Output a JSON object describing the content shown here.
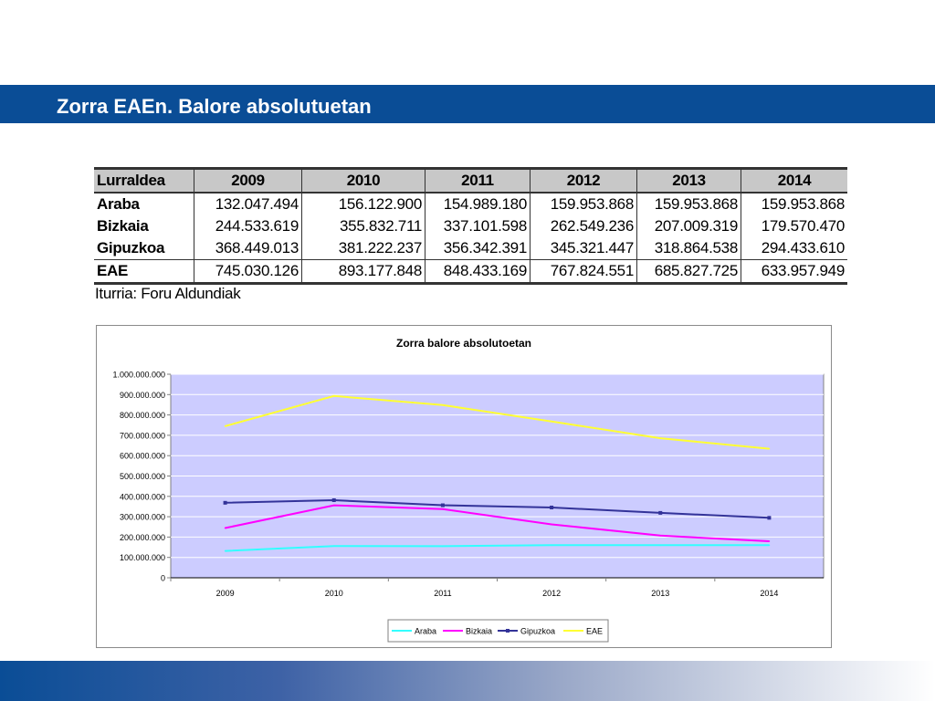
{
  "slide": {
    "title": "Zorra EAEn. Balore absolutuetan",
    "source": "Iturria: Foru Aldundiak"
  },
  "table": {
    "header": [
      "Lurraldea",
      "2009",
      "2010",
      "2011",
      "2012",
      "2013",
      "2014"
    ],
    "rows": [
      [
        "Araba",
        "132.047.494",
        "156.122.900",
        "154.989.180",
        "159.953.868",
        "159.953.868",
        "159.953.868"
      ],
      [
        "Bizkaia",
        "244.533.619",
        "355.832.711",
        "337.101.598",
        "262.549.236",
        "207.009.319",
        "179.570.470"
      ],
      [
        "Gipuzkoa",
        "368.449.013",
        "381.222.237",
        "356.342.391",
        "345.321.447",
        "318.864.538",
        "294.433.610"
      ],
      [
        "EAE",
        "745.030.126",
        "893.177.848",
        "848.433.169",
        "767.824.551",
        "685.827.725",
        "633.957.949"
      ]
    ]
  },
  "chart_data": {
    "type": "line",
    "title": "Zorra  balore absolutoetan",
    "categories": [
      "2009",
      "2010",
      "2011",
      "2012",
      "2013",
      "2014"
    ],
    "ylim": [
      0,
      1000000000
    ],
    "yticks": [
      "0",
      "100.000.000",
      "200.000.000",
      "300.000.000",
      "400.000.000",
      "500.000.000",
      "600.000.000",
      "700.000.000",
      "800.000.000",
      "900.000.000",
      "1.000.000.000"
    ],
    "grid": true,
    "legend_position": "bottom",
    "plot_background": "#ccccff",
    "series": [
      {
        "name": "Araba",
        "color": "#33ffff",
        "marker": false,
        "values": [
          132047494,
          156122900,
          154989180,
          159953868,
          159953868,
          159953868
        ]
      },
      {
        "name": "Bizkaia",
        "color": "#ff00ff",
        "marker": false,
        "values": [
          244533619,
          355832711,
          337101598,
          262549236,
          207009319,
          179570470
        ]
      },
      {
        "name": "Gipuzkoa",
        "color": "#333399",
        "marker": true,
        "values": [
          368449013,
          381222237,
          356342391,
          345321447,
          318864538,
          294433610
        ]
      },
      {
        "name": "EAE",
        "color": "#ffff33",
        "marker": false,
        "values": [
          745030126,
          893177848,
          848433169,
          767824551,
          685827725,
          633957949
        ]
      }
    ]
  }
}
